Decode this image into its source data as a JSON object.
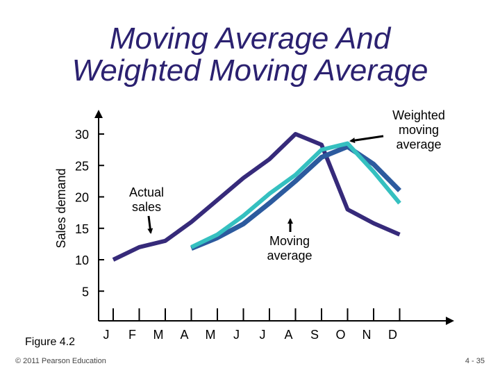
{
  "slide": {
    "title_line1": "Moving Average And",
    "title_line2": "Weighted Moving Average",
    "figure_caption": "Figure 4.2",
    "copyright": "© 2011 Pearson Education",
    "page_number": "4 - 35"
  },
  "colors": {
    "title": "#2b2170",
    "actual": "#362a7a",
    "moving_average": "#2c5a9e",
    "weighted_moving_average": "#35c0c0"
  },
  "chart_data": {
    "type": "line",
    "ylabel": "Sales demand",
    "xlabel": "",
    "categories": [
      "J",
      "F",
      "M",
      "A",
      "M",
      "J",
      "J",
      "A",
      "S",
      "O",
      "N",
      "D"
    ],
    "y_ticks": [
      5,
      10,
      15,
      20,
      25,
      30
    ],
    "ylim": [
      1,
      33
    ],
    "grid": false,
    "series": [
      {
        "key": "actual",
        "name": "Actual sales",
        "values": [
          10,
          12,
          13,
          16,
          19.5,
          23,
          26,
          30,
          28.3,
          18,
          15.8,
          14
        ]
      },
      {
        "key": "moving_average",
        "name": "Moving average",
        "values": [
          null,
          null,
          null,
          11.8,
          13.5,
          15.7,
          19,
          22.5,
          26.3,
          28,
          25.2,
          21
        ]
      },
      {
        "key": "weighted_moving_average",
        "name": "Weighted moving average",
        "values": [
          null,
          null,
          null,
          12,
          14,
          17,
          20.5,
          23.5,
          27.5,
          28.5,
          24,
          19
        ]
      }
    ],
    "annotations": {
      "actual": [
        "Actual",
        "sales"
      ],
      "moving_average": [
        "Moving",
        "average"
      ],
      "weighted_moving_average": [
        "Weighted",
        "moving",
        "average"
      ]
    }
  }
}
